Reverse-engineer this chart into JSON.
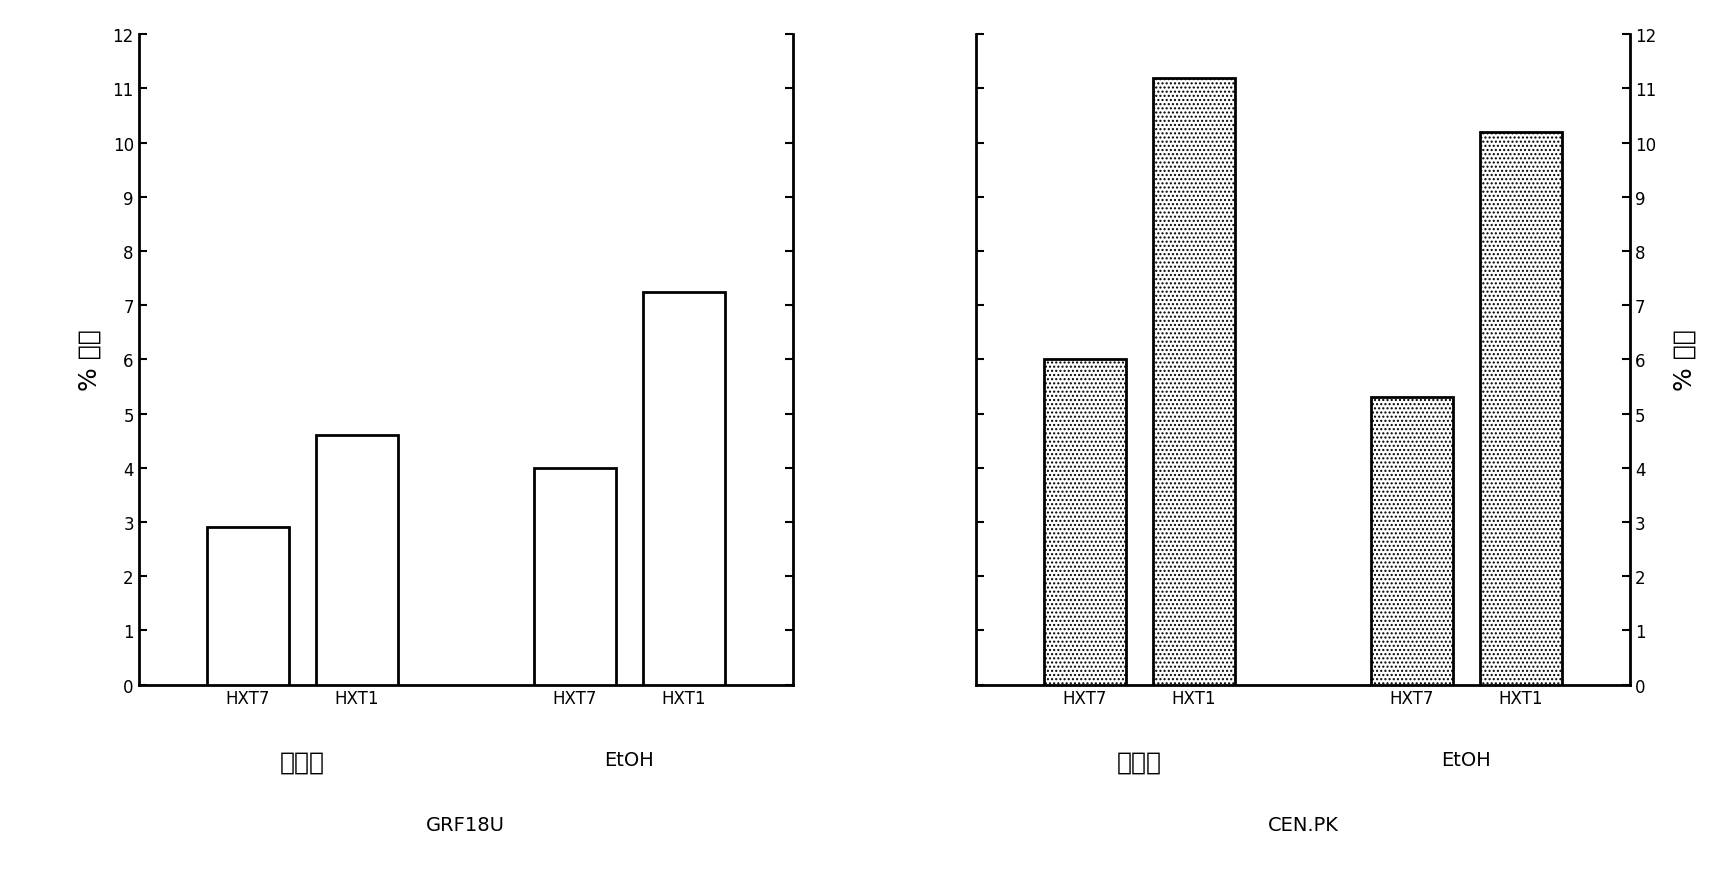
{
  "left_chart": {
    "title": "GRF18U",
    "ylabel": "% 增加",
    "group1_label": "生物质",
    "group2_label": "EtOH",
    "bar_labels": [
      "HXT7",
      "HXT1",
      "HXT7",
      "HXT1"
    ],
    "values": [
      2.9,
      4.6,
      4.0,
      7.25
    ],
    "bar_color": "#ffffff",
    "bar_edgecolor": "#000000",
    "ylim": [
      0,
      12
    ],
    "yticks": [
      0,
      1,
      2,
      3,
      4,
      5,
      6,
      7,
      8,
      9,
      10,
      11,
      12
    ]
  },
  "right_chart": {
    "title": "CEN.PK",
    "ylabel": "% 增加",
    "group1_label": "生物质",
    "group2_label": "EtOH",
    "group2_sub_label1": "HXT7",
    "group2_sub_label2": "HXT1",
    "bar_labels": [
      "HXT7",
      "HXT1",
      "HXT7",
      "HXT1"
    ],
    "values": [
      6.0,
      11.2,
      5.3,
      10.2
    ],
    "bar_color": "#ffffff",
    "bar_hatch": "....",
    "bar_edgecolor": "#000000",
    "ylim": [
      0,
      12
    ],
    "yticks": [
      0,
      1,
      2,
      3,
      4,
      5,
      6,
      7,
      8,
      9,
      10,
      11,
      12
    ]
  },
  "background_color": "#ffffff"
}
